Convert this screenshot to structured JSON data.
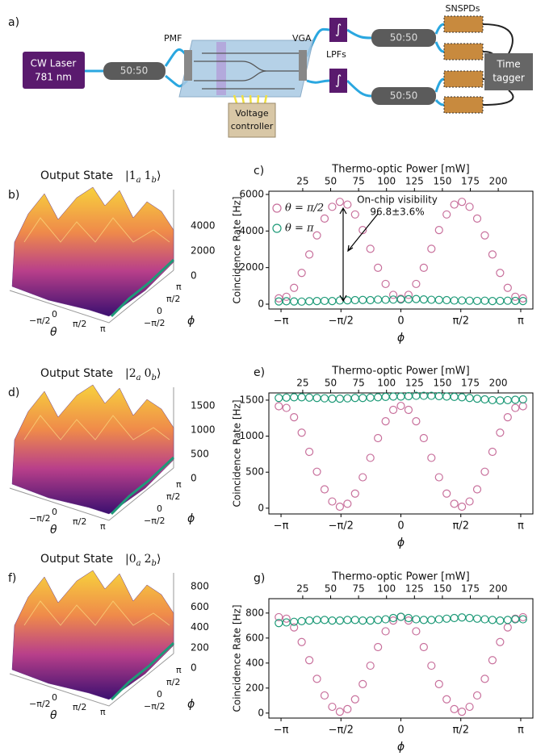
{
  "figure_a": {
    "label": "a)",
    "laser": [
      "CW Laser",
      "781 nm"
    ],
    "splitter_in": "50:50",
    "pmf": "PMF",
    "vga": "VGA",
    "lpfs": "LPFs",
    "lpf_symbol": "∫",
    "splitter_top": "50:50",
    "splitter_bottom": "50:50",
    "snspds": "SNSPDs",
    "tagger": [
      "Time",
      "tagger"
    ],
    "controller": [
      "Voltage",
      "controller"
    ]
  },
  "surfaces": [
    {
      "label": "b)",
      "title": "Output State",
      "ket": {
        "open": "|",
        "terms": [
          {
            "n": "1",
            "sub": "a"
          },
          {
            "n": "1",
            "sub": "b"
          }
        ],
        "close": "⟩"
      },
      "zticks": [
        4000,
        2000,
        0
      ],
      "xticks": [
        "−π/2",
        "0",
        "π/2",
        "π"
      ],
      "yticks": [
        "π",
        "π/2",
        "0",
        "−π/2"
      ],
      "xlabel": "θ",
      "ylabel": "ϕ"
    },
    {
      "label": "d)",
      "title": "Output State",
      "ket": {
        "open": "|",
        "terms": [
          {
            "n": "2",
            "sub": "a"
          },
          {
            "n": "0",
            "sub": "b"
          }
        ],
        "close": "⟩"
      },
      "zticks": [
        1500,
        1000,
        500,
        0
      ],
      "xticks": [
        "−π/2",
        "0",
        "π/2",
        "π"
      ],
      "yticks": [
        "π",
        "π/2",
        "0",
        "−π/2"
      ],
      "xlabel": "θ",
      "ylabel": "ϕ"
    },
    {
      "label": "f)",
      "title": "Output State",
      "ket": {
        "open": "|",
        "terms": [
          {
            "n": "0",
            "sub": "a"
          },
          {
            "n": "2",
            "sub": "b"
          }
        ],
        "close": "⟩"
      },
      "zticks": [
        800,
        600,
        400,
        200,
        0
      ],
      "xticks": [
        "−π/2",
        "0",
        "π/2",
        "π"
      ],
      "yticks": [
        "π",
        "π/2",
        "0",
        "−π/2"
      ],
      "xlabel": "θ",
      "ylabel": "ϕ"
    }
  ],
  "chart_data": [
    {
      "type": "scatter",
      "label": "c)",
      "x2label": "Thermo-optic Power [mW]",
      "x2lim": [
        -5.3,
        231
      ],
      "x2ticks": [
        25,
        50,
        75,
        100,
        125,
        150,
        175,
        200
      ],
      "xlabel": "ϕ",
      "ylabel": "Coincidence Rate [Hz]",
      "xlim": [
        -3.46,
        3.46
      ],
      "xticks": [
        {
          "value": -3.14159,
          "label": "−π"
        },
        {
          "value": -1.5708,
          "label": "−π/2"
        },
        0,
        {
          "value": 1.5708,
          "label": "π/2"
        },
        {
          "value": 3.14159,
          "label": "π"
        }
      ],
      "ylim": [
        -265,
        6176
      ],
      "yticks": [
        0,
        2000,
        4000,
        6000
      ],
      "legend": "upper left",
      "annotation": [
        "On-chip visibility",
        "96.8±3.6%"
      ],
      "x": [
        -3.2,
        -3.0,
        -2.8,
        -2.6,
        -2.4,
        -2.2,
        -2.0,
        -1.8,
        -1.6,
        -1.4,
        -1.2,
        -1.0,
        -0.8,
        -0.6,
        -0.4,
        -0.2,
        0,
        0.2,
        0.4,
        0.6,
        0.8,
        1.0,
        1.2,
        1.4,
        1.6,
        1.8,
        2.0,
        2.2,
        2.4,
        2.6,
        2.8,
        3.0,
        3.2
      ],
      "series": [
        {
          "name": "θ = π/2",
          "color": "#c8709c",
          "values": [
            318,
            405,
            894,
            1710,
            2717,
            3761,
            4683,
            5324,
            5595,
            5446,
            4905,
            4053,
            3026,
            1990,
            1106,
            509,
            300,
            509,
            1106,
            1990,
            3026,
            4053,
            4905,
            5446,
            5595,
            5324,
            4683,
            3761,
            2717,
            1710,
            894,
            405,
            318
          ]
        },
        {
          "name": "θ = π",
          "color": "#1e9a78",
          "values": [
            150,
            160,
            150,
            140,
            160,
            170,
            180,
            170,
            200,
            210,
            220,
            230,
            220,
            250,
            240,
            250,
            260,
            270,
            280,
            260,
            240,
            230,
            220,
            200,
            200,
            190,
            180,
            190,
            170,
            180,
            190,
            180,
            170
          ]
        }
      ]
    },
    {
      "type": "scatter",
      "label": "e)",
      "x2label": "Thermo-optic Power [mW]",
      "x2lim": [
        -5.3,
        231
      ],
      "x2ticks": [
        25,
        50,
        75,
        100,
        125,
        150,
        175,
        200
      ],
      "xlabel": "ϕ",
      "ylabel": "Coincidence Rate [Hz]",
      "xlim": [
        -3.46,
        3.46
      ],
      "xticks": [
        {
          "value": -3.14159,
          "label": "−π"
        },
        {
          "value": -1.5708,
          "label": "−π/2"
        },
        0,
        {
          "value": 1.5708,
          "label": "π/2"
        },
        {
          "value": 3.14159,
          "label": "π"
        }
      ],
      "ylim": [
        -80,
        1600
      ],
      "yticks": [
        0,
        500,
        1000,
        1500
      ],
      "x": [
        -3.2,
        -3.0,
        -2.8,
        -2.6,
        -2.4,
        -2.2,
        -2.0,
        -1.8,
        -1.6,
        -1.4,
        -1.2,
        -1.0,
        -0.8,
        -0.6,
        -0.4,
        -0.2,
        0,
        0.2,
        0.4,
        0.6,
        0.8,
        1.0,
        1.2,
        1.4,
        1.6,
        1.8,
        2.0,
        2.2,
        2.4,
        2.6,
        2.8,
        3.0,
        3.2
      ],
      "series": [
        {
          "color": "#c8709c",
          "values": [
            1415,
            1392,
            1263,
            1048,
            782,
            506,
            262,
            93,
            21,
            61,
            203,
            429,
            699,
            973,
            1207,
            1365,
            1420,
            1365,
            1207,
            973,
            699,
            429,
            203,
            61,
            21,
            93,
            262,
            506,
            782,
            1048,
            1263,
            1392,
            1415
          ]
        },
        {
          "color": "#1e9a78",
          "values": [
            1530,
            1535,
            1540,
            1540,
            1535,
            1530,
            1525,
            1520,
            1520,
            1525,
            1530,
            1530,
            1535,
            1540,
            1545,
            1550,
            1550,
            1555,
            1560,
            1560,
            1560,
            1555,
            1550,
            1545,
            1540,
            1530,
            1520,
            1510,
            1500,
            1495,
            1500,
            1505,
            1510
          ]
        }
      ]
    },
    {
      "type": "scatter",
      "label": "g)",
      "x2label": "Thermo-optic Power [mW]",
      "x2lim": [
        -5.3,
        231
      ],
      "x2ticks": [
        25,
        50,
        75,
        100,
        125,
        150,
        175,
        200
      ],
      "xlabel": "ϕ",
      "ylabel": "Coincidence Rate [Hz]",
      "xlim": [
        -3.46,
        3.46
      ],
      "xticks": [
        {
          "value": -3.14159,
          "label": "−π"
        },
        {
          "value": -1.5708,
          "label": "−π/2"
        },
        0,
        {
          "value": 1.5708,
          "label": "π/2"
        },
        {
          "value": 3.14159,
          "label": "π"
        }
      ],
      "ylim": [
        -40,
        915
      ],
      "yticks": [
        0,
        200,
        400,
        600,
        800
      ],
      "x": [
        -3.2,
        -3.0,
        -2.8,
        -2.6,
        -2.4,
        -2.2,
        -2.0,
        -1.8,
        -1.6,
        -1.4,
        -1.2,
        -1.0,
        -0.8,
        -0.6,
        -0.4,
        -0.2,
        0,
        0.2,
        0.4,
        0.6,
        0.8,
        1.0,
        1.2,
        1.4,
        1.6,
        1.8,
        2.0,
        2.2,
        2.4,
        2.6,
        2.8,
        3.0,
        3.2
      ],
      "series": [
        {
          "color": "#c8709c",
          "values": [
            767,
            755,
            685,
            568,
            423,
            274,
            141,
            50,
            11,
            32,
            110,
            232,
            379,
            528,
            654,
            740,
            770,
            740,
            654,
            528,
            379,
            232,
            110,
            32,
            11,
            50,
            141,
            274,
            423,
            568,
            685,
            755,
            767
          ]
        },
        {
          "color": "#1e9a78",
          "values": [
            720,
            725,
            730,
            735,
            740,
            745,
            745,
            740,
            740,
            745,
            745,
            740,
            740,
            745,
            750,
            760,
            770,
            760,
            750,
            745,
            745,
            750,
            755,
            760,
            765,
            760,
            755,
            750,
            745,
            740,
            745,
            750,
            750
          ]
        }
      ]
    }
  ]
}
